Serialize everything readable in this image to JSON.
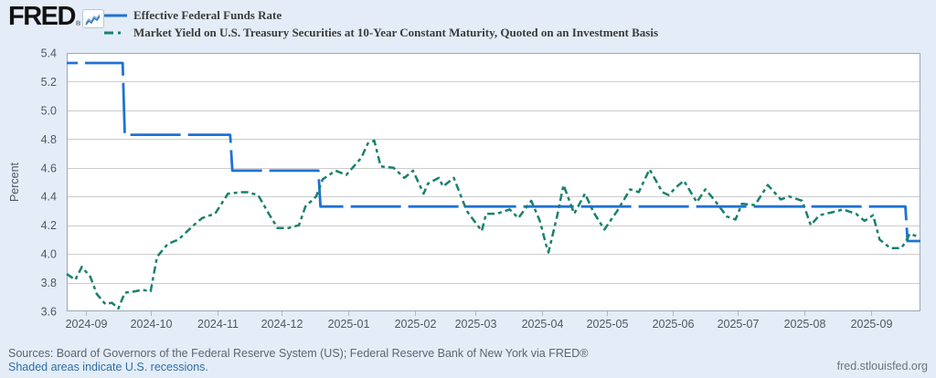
{
  "header": {
    "logo_text": "FRED",
    "registered_mark": "®",
    "sparkline_icon": "line-chart-icon",
    "legend": [
      {
        "label": "Effective Federal Funds Rate",
        "color": "#1f72d4",
        "style": "solid"
      },
      {
        "label": "Market Yield on U.S. Treasury Securities at 10-Year Constant Maturity, Quoted on an Investment Basis",
        "color": "#1a806e",
        "style": "dash-dot"
      }
    ]
  },
  "chart_data": {
    "type": "line",
    "title": "",
    "xlabel": "",
    "ylabel": "Percent",
    "ylim": [
      3.6,
      5.4
    ],
    "y_ticks": [
      3.6,
      3.8,
      4.0,
      4.2,
      4.4,
      4.6,
      4.8,
      5.0,
      5.2,
      5.4
    ],
    "x_tick_labels": [
      "2024-09",
      "2024-10",
      "2024-11",
      "2024-12",
      "2025-01",
      "2025-02",
      "2025-03",
      "2025-04",
      "2025-05",
      "2025-06",
      "2025-07",
      "2025-08",
      "2025-09"
    ],
    "x_range": [
      "2024-08-23",
      "2025-09-24"
    ],
    "grid": "horizontal",
    "legend_position": "top-left",
    "plot_bg": "#ffffff",
    "grid_color": "#cccccc",
    "border_color": "#9aa8b6",
    "tick_text_color": "#4e5763",
    "series": [
      {
        "name": "Effective Federal Funds Rate",
        "color": "#1f72d4",
        "dash": "long-dash",
        "width": 2.8,
        "points": [
          [
            "2024-08-23",
            5.33
          ],
          [
            "2024-09-18",
            5.33
          ],
          [
            "2024-09-19",
            4.83
          ],
          [
            "2024-11-07",
            4.83
          ],
          [
            "2024-11-08",
            4.58
          ],
          [
            "2024-12-18",
            4.58
          ],
          [
            "2024-12-19",
            4.33
          ],
          [
            "2025-09-17",
            4.33
          ],
          [
            "2025-09-18",
            4.09
          ],
          [
            "2025-09-24",
            4.09
          ]
        ]
      },
      {
        "name": "Market Yield on U.S. Treasury Securities at 10-Year Constant Maturity, Quoted on an Investment Basis",
        "color": "#1a806e",
        "dash": "dash-dot",
        "width": 2.5,
        "points": [
          [
            "2024-08-23",
            3.86
          ],
          [
            "2024-08-27",
            3.82
          ],
          [
            "2024-08-30",
            3.91
          ],
          [
            "2024-09-03",
            3.84
          ],
          [
            "2024-09-06",
            3.72
          ],
          [
            "2024-09-10",
            3.65
          ],
          [
            "2024-09-13",
            3.66
          ],
          [
            "2024-09-16",
            3.62
          ],
          [
            "2024-09-19",
            3.73
          ],
          [
            "2024-09-24",
            3.74
          ],
          [
            "2024-09-27",
            3.75
          ],
          [
            "2024-10-01",
            3.74
          ],
          [
            "2024-10-04",
            3.98
          ],
          [
            "2024-10-09",
            4.07
          ],
          [
            "2024-10-14",
            4.1
          ],
          [
            "2024-10-21",
            4.2
          ],
          [
            "2024-10-25",
            4.25
          ],
          [
            "2024-10-31",
            4.28
          ],
          [
            "2024-11-06",
            4.42
          ],
          [
            "2024-11-12",
            4.43
          ],
          [
            "2024-11-15",
            4.43
          ],
          [
            "2024-11-20",
            4.41
          ],
          [
            "2024-11-25",
            4.28
          ],
          [
            "2024-11-29",
            4.18
          ],
          [
            "2024-12-04",
            4.18
          ],
          [
            "2024-12-09",
            4.2
          ],
          [
            "2024-12-12",
            4.33
          ],
          [
            "2024-12-17",
            4.4
          ],
          [
            "2024-12-20",
            4.52
          ],
          [
            "2024-12-26",
            4.58
          ],
          [
            "2024-12-31",
            4.55
          ],
          [
            "2025-01-07",
            4.67
          ],
          [
            "2025-01-10",
            4.77
          ],
          [
            "2025-01-13",
            4.79
          ],
          [
            "2025-01-16",
            4.61
          ],
          [
            "2025-01-22",
            4.6
          ],
          [
            "2025-01-27",
            4.53
          ],
          [
            "2025-01-31",
            4.58
          ],
          [
            "2025-02-05",
            4.42
          ],
          [
            "2025-02-07",
            4.49
          ],
          [
            "2025-02-12",
            4.53
          ],
          [
            "2025-02-14",
            4.47
          ],
          [
            "2025-02-19",
            4.53
          ],
          [
            "2025-02-25",
            4.3
          ],
          [
            "2025-02-28",
            4.24
          ],
          [
            "2025-03-04",
            4.16
          ],
          [
            "2025-03-06",
            4.28
          ],
          [
            "2025-03-11",
            4.28
          ],
          [
            "2025-03-17",
            4.31
          ],
          [
            "2025-03-21",
            4.25
          ],
          [
            "2025-03-27",
            4.37
          ],
          [
            "2025-03-31",
            4.23
          ],
          [
            "2025-04-03",
            4.06
          ],
          [
            "2025-04-04",
            4.01
          ],
          [
            "2025-04-08",
            4.26
          ],
          [
            "2025-04-11",
            4.48
          ],
          [
            "2025-04-16",
            4.28
          ],
          [
            "2025-04-21",
            4.42
          ],
          [
            "2025-04-25",
            4.29
          ],
          [
            "2025-04-30",
            4.17
          ],
          [
            "2025-05-06",
            4.3
          ],
          [
            "2025-05-12",
            4.45
          ],
          [
            "2025-05-16",
            4.43
          ],
          [
            "2025-05-21",
            4.59
          ],
          [
            "2025-05-27",
            4.43
          ],
          [
            "2025-05-30",
            4.41
          ],
          [
            "2025-06-02",
            4.46
          ],
          [
            "2025-06-06",
            4.51
          ],
          [
            "2025-06-12",
            4.36
          ],
          [
            "2025-06-16",
            4.45
          ],
          [
            "2025-06-20",
            4.38
          ],
          [
            "2025-06-26",
            4.26
          ],
          [
            "2025-06-30",
            4.24
          ],
          [
            "2025-07-03",
            4.35
          ],
          [
            "2025-07-09",
            4.34
          ],
          [
            "2025-07-15",
            4.48
          ],
          [
            "2025-07-21",
            4.38
          ],
          [
            "2025-07-25",
            4.4
          ],
          [
            "2025-07-31",
            4.37
          ],
          [
            "2025-08-04",
            4.2
          ],
          [
            "2025-08-08",
            4.27
          ],
          [
            "2025-08-14",
            4.29
          ],
          [
            "2025-08-19",
            4.31
          ],
          [
            "2025-08-25",
            4.28
          ],
          [
            "2025-08-29",
            4.23
          ],
          [
            "2025-09-02",
            4.27
          ],
          [
            "2025-09-05",
            4.1
          ],
          [
            "2025-09-10",
            4.04
          ],
          [
            "2025-09-15",
            4.04
          ],
          [
            "2025-09-17",
            4.08
          ],
          [
            "2025-09-19",
            4.14
          ],
          [
            "2025-09-23",
            4.12
          ]
        ]
      }
    ]
  },
  "footer": {
    "sources_line": "Sources: Board of Governors of the Federal Reserve System (US); Federal Reserve Bank of New York via FRED®",
    "recessions_link": "Shaded areas indicate U.S. recessions.",
    "site_url": "fred.stlouisfed.org"
  }
}
